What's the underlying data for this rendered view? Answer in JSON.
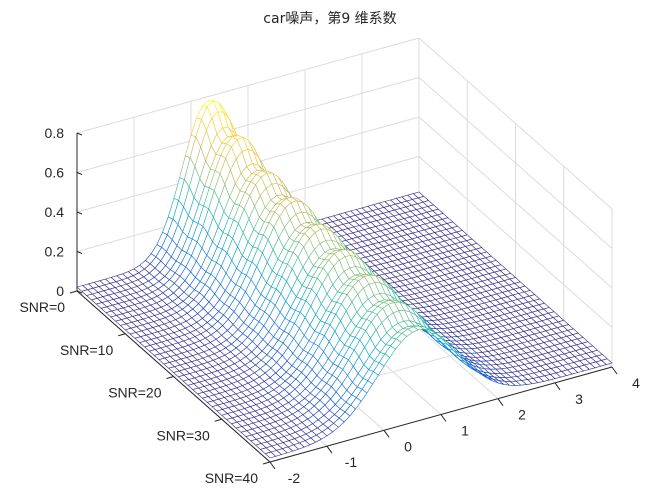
{
  "chart_data": {
    "type": "surface-mesh",
    "title": "car噪声，第9 维系数",
    "xlabel": "",
    "ylabel": "",
    "zlabel": "",
    "xlim": [
      -2,
      4
    ],
    "ylim": [
      0,
      40
    ],
    "zlim": [
      0,
      0.8
    ],
    "x_ticks": [
      "-2",
      "-1",
      "0",
      "1",
      "2",
      "3",
      "4"
    ],
    "x_tick_values": [
      -2,
      -1,
      0,
      1,
      2,
      3,
      4
    ],
    "y_ticks": [
      "SNR=0",
      "SNR=10",
      "SNR=20",
      "SNR=30",
      "SNR=40"
    ],
    "y_tick_values": [
      0,
      10,
      20,
      30,
      40
    ],
    "z_ticks": [
      "0",
      "0.2",
      "0.4",
      "0.6",
      "0.8"
    ],
    "z_tick_values": [
      0,
      0.2,
      0.4,
      0.6,
      0.8
    ],
    "grid": true,
    "colormap": "parula",
    "x_step": 0.1,
    "snr_step": 1,
    "series": [
      {
        "name": "SNR=0",
        "snr": 0,
        "peak": 0.78,
        "mean": 0.3,
        "sigma": 0.45
      },
      {
        "name": "SNR=10",
        "snr": 10,
        "peak": 0.62,
        "mean": 0.4,
        "sigma": 0.55
      },
      {
        "name": "SNR=20",
        "snr": 20,
        "peak": 0.55,
        "mean": 0.5,
        "sigma": 0.6
      },
      {
        "name": "SNR=30",
        "snr": 30,
        "peak": 0.5,
        "mean": 0.55,
        "sigma": 0.65
      },
      {
        "name": "SNR=40",
        "snr": 40,
        "peak": 0.44,
        "mean": 0.6,
        "sigma": 0.7
      }
    ],
    "baseline": 0.02
  },
  "colors": {
    "axis": "#262626",
    "grid": "#dcdcdc",
    "parula": [
      "#352a87",
      "#0f5cdd",
      "#1481d6",
      "#06a4ca",
      "#2eb7a4",
      "#87bf77",
      "#d1bb59",
      "#fec832",
      "#f9fb0e"
    ]
  }
}
